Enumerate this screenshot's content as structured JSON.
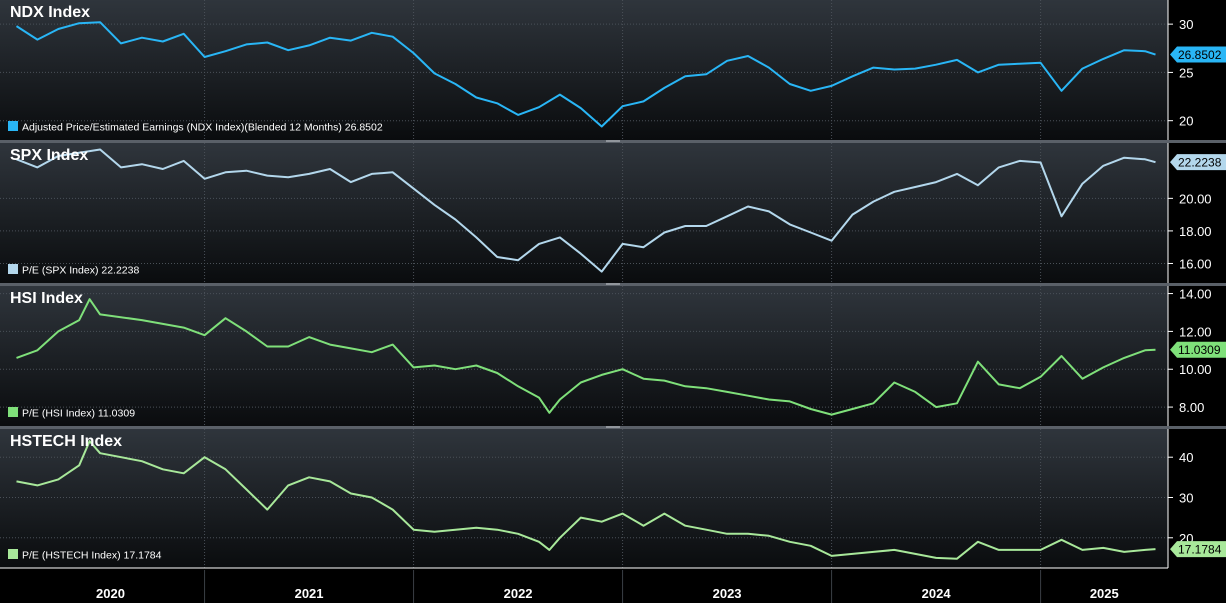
{
  "chart_data": [
    {
      "type": "line",
      "title": "NDX Index",
      "series": [
        {
          "name": "Adjusted Price/Estimated Earnings (NDX Index)(Blended 12 Months)",
          "color": "#29b6f6",
          "values": [
            [
              2020.0,
              29.8
            ],
            [
              2020.1,
              28.4
            ],
            [
              2020.2,
              29.5
            ],
            [
              2020.3,
              30.1
            ],
            [
              2020.4,
              30.2
            ],
            [
              2020.5,
              28.0
            ],
            [
              2020.6,
              28.6
            ],
            [
              2020.7,
              28.2
            ],
            [
              2020.8,
              29.0
            ],
            [
              2020.9,
              26.6
            ],
            [
              2021.0,
              27.2
            ],
            [
              2021.1,
              27.9
            ],
            [
              2021.2,
              28.1
            ],
            [
              2021.3,
              27.3
            ],
            [
              2021.4,
              27.8
            ],
            [
              2021.5,
              28.6
            ],
            [
              2021.6,
              28.3
            ],
            [
              2021.7,
              29.1
            ],
            [
              2021.8,
              28.7
            ],
            [
              2021.9,
              27.0
            ],
            [
              2022.0,
              24.9
            ],
            [
              2022.1,
              23.8
            ],
            [
              2022.2,
              22.4
            ],
            [
              2022.3,
              21.8
            ],
            [
              2022.4,
              20.6
            ],
            [
              2022.5,
              21.4
            ],
            [
              2022.6,
              22.7
            ],
            [
              2022.7,
              21.3
            ],
            [
              2022.8,
              19.4
            ],
            [
              2022.9,
              21.5
            ],
            [
              2023.0,
              22.0
            ],
            [
              2023.1,
              23.4
            ],
            [
              2023.2,
              24.6
            ],
            [
              2023.3,
              24.8
            ],
            [
              2023.4,
              26.2
            ],
            [
              2023.5,
              26.7
            ],
            [
              2023.6,
              25.5
            ],
            [
              2023.7,
              23.8
            ],
            [
              2023.8,
              23.1
            ],
            [
              2023.9,
              23.6
            ],
            [
              2024.0,
              24.6
            ],
            [
              2024.1,
              25.5
            ],
            [
              2024.2,
              25.3
            ],
            [
              2024.3,
              25.4
            ],
            [
              2024.4,
              25.8
            ],
            [
              2024.5,
              26.3
            ],
            [
              2024.6,
              25.0
            ],
            [
              2024.7,
              25.8
            ],
            [
              2024.8,
              25.9
            ],
            [
              2024.9,
              26.0
            ],
            [
              2025.0,
              23.1
            ],
            [
              2025.1,
              25.4
            ],
            [
              2025.2,
              26.4
            ],
            [
              2025.3,
              27.3
            ],
            [
              2025.4,
              27.2
            ],
            [
              2025.45,
              26.85
            ]
          ]
        }
      ],
      "ylim": [
        18,
        32.5
      ],
      "yticks": [
        "30",
        "25",
        "20"
      ],
      "last_value": "26.8502",
      "legend": "Adjusted Price/Estimated Earnings (NDX Index)(Blended 12 Months)  26.8502"
    },
    {
      "type": "line",
      "title": "SPX Index",
      "series": [
        {
          "name": "P/E (SPX Index)",
          "color": "#b3d7ec",
          "values": [
            [
              2020.0,
              22.4
            ],
            [
              2020.1,
              21.9
            ],
            [
              2020.2,
              22.6
            ],
            [
              2020.3,
              22.8
            ],
            [
              2020.4,
              23.0
            ],
            [
              2020.5,
              21.9
            ],
            [
              2020.6,
              22.1
            ],
            [
              2020.7,
              21.8
            ],
            [
              2020.8,
              22.3
            ],
            [
              2020.9,
              21.2
            ],
            [
              2021.0,
              21.6
            ],
            [
              2021.1,
              21.7
            ],
            [
              2021.2,
              21.4
            ],
            [
              2021.3,
              21.3
            ],
            [
              2021.4,
              21.5
            ],
            [
              2021.5,
              21.8
            ],
            [
              2021.6,
              21.0
            ],
            [
              2021.7,
              21.5
            ],
            [
              2021.8,
              21.6
            ],
            [
              2021.9,
              20.6
            ],
            [
              2022.0,
              19.6
            ],
            [
              2022.1,
              18.7
            ],
            [
              2022.2,
              17.6
            ],
            [
              2022.3,
              16.4
            ],
            [
              2022.4,
              16.2
            ],
            [
              2022.5,
              17.2
            ],
            [
              2022.6,
              17.6
            ],
            [
              2022.7,
              16.6
            ],
            [
              2022.8,
              15.5
            ],
            [
              2022.9,
              17.2
            ],
            [
              2023.0,
              17.0
            ],
            [
              2023.1,
              17.9
            ],
            [
              2023.2,
              18.3
            ],
            [
              2023.3,
              18.3
            ],
            [
              2023.4,
              18.9
            ],
            [
              2023.5,
              19.5
            ],
            [
              2023.6,
              19.2
            ],
            [
              2023.7,
              18.4
            ],
            [
              2023.8,
              17.9
            ],
            [
              2023.9,
              17.4
            ],
            [
              2024.0,
              19.0
            ],
            [
              2024.1,
              19.8
            ],
            [
              2024.2,
              20.4
            ],
            [
              2024.3,
              20.7
            ],
            [
              2024.4,
              21.0
            ],
            [
              2024.5,
              21.5
            ],
            [
              2024.6,
              20.8
            ],
            [
              2024.7,
              21.9
            ],
            [
              2024.8,
              22.3
            ],
            [
              2024.9,
              22.2
            ],
            [
              2025.0,
              18.9
            ],
            [
              2025.1,
              20.9
            ],
            [
              2025.2,
              22.0
            ],
            [
              2025.3,
              22.5
            ],
            [
              2025.4,
              22.4
            ],
            [
              2025.45,
              22.22
            ]
          ]
        }
      ],
      "ylim": [
        14.8,
        23.4
      ],
      "yticks": [
        "20.00",
        "18.00",
        "16.00"
      ],
      "last_value": "22.2238",
      "legend": "P/E (SPX Index)  22.2238"
    },
    {
      "type": "line",
      "title": "HSI Index",
      "series": [
        {
          "name": "P/E (HSI Index)",
          "color": "#7fe07a",
          "values": [
            [
              2020.0,
              10.6
            ],
            [
              2020.1,
              11.0
            ],
            [
              2020.2,
              12.0
            ],
            [
              2020.3,
              12.6
            ],
            [
              2020.35,
              13.7
            ],
            [
              2020.4,
              12.9
            ],
            [
              2020.6,
              12.6
            ],
            [
              2020.8,
              12.2
            ],
            [
              2020.9,
              11.8
            ],
            [
              2021.0,
              12.7
            ],
            [
              2021.1,
              12.0
            ],
            [
              2021.2,
              11.2
            ],
            [
              2021.3,
              11.2
            ],
            [
              2021.4,
              11.7
            ],
            [
              2021.5,
              11.3
            ],
            [
              2021.6,
              11.1
            ],
            [
              2021.7,
              10.9
            ],
            [
              2021.8,
              11.3
            ],
            [
              2021.9,
              10.1
            ],
            [
              2022.0,
              10.2
            ],
            [
              2022.1,
              10.0
            ],
            [
              2022.2,
              10.2
            ],
            [
              2022.3,
              9.8
            ],
            [
              2022.4,
              9.1
            ],
            [
              2022.5,
              8.5
            ],
            [
              2022.55,
              7.7
            ],
            [
              2022.6,
              8.4
            ],
            [
              2022.7,
              9.3
            ],
            [
              2022.8,
              9.7
            ],
            [
              2022.9,
              10.0
            ],
            [
              2023.0,
              9.5
            ],
            [
              2023.1,
              9.4
            ],
            [
              2023.2,
              9.1
            ],
            [
              2023.3,
              9.0
            ],
            [
              2023.4,
              8.8
            ],
            [
              2023.5,
              8.6
            ],
            [
              2023.6,
              8.4
            ],
            [
              2023.7,
              8.3
            ],
            [
              2023.8,
              7.9
            ],
            [
              2023.9,
              7.6
            ],
            [
              2024.0,
              7.9
            ],
            [
              2024.1,
              8.2
            ],
            [
              2024.2,
              9.3
            ],
            [
              2024.3,
              8.8
            ],
            [
              2024.4,
              8.0
            ],
            [
              2024.5,
              8.2
            ],
            [
              2024.6,
              10.4
            ],
            [
              2024.7,
              9.2
            ],
            [
              2024.8,
              9.0
            ],
            [
              2024.9,
              9.6
            ],
            [
              2025.0,
              10.7
            ],
            [
              2025.1,
              9.5
            ],
            [
              2025.2,
              10.1
            ],
            [
              2025.3,
              10.6
            ],
            [
              2025.4,
              11.0
            ],
            [
              2025.45,
              11.03
            ]
          ]
        }
      ],
      "ylim": [
        7,
        14.4
      ],
      "yticks": [
        "14.00",
        "12.00",
        "10.00",
        "8.00"
      ],
      "last_value": "11.0309",
      "legend": "P/E (HSI Index)  11.0309"
    },
    {
      "type": "line",
      "title": "HSTECH Index",
      "series": [
        {
          "name": "P/E (HSTECH Index)",
          "color": "#a8e89a",
          "values": [
            [
              2020.0,
              34.0
            ],
            [
              2020.1,
              33.0
            ],
            [
              2020.2,
              34.5
            ],
            [
              2020.3,
              38.0
            ],
            [
              2020.35,
              44.0
            ],
            [
              2020.4,
              41.0
            ],
            [
              2020.6,
              39.0
            ],
            [
              2020.7,
              37.0
            ],
            [
              2020.8,
              36.0
            ],
            [
              2020.9,
              40.0
            ],
            [
              2021.0,
              37.0
            ],
            [
              2021.1,
              32.0
            ],
            [
              2021.2,
              27.0
            ],
            [
              2021.3,
              33.0
            ],
            [
              2021.4,
              35.0
            ],
            [
              2021.5,
              34.0
            ],
            [
              2021.6,
              31.0
            ],
            [
              2021.7,
              30.0
            ],
            [
              2021.8,
              27.0
            ],
            [
              2021.9,
              22.0
            ],
            [
              2022.0,
              21.5
            ],
            [
              2022.1,
              22.0
            ],
            [
              2022.2,
              22.5
            ],
            [
              2022.3,
              22.0
            ],
            [
              2022.4,
              21.0
            ],
            [
              2022.5,
              19.0
            ],
            [
              2022.55,
              17.0
            ],
            [
              2022.6,
              20.0
            ],
            [
              2022.7,
              25.0
            ],
            [
              2022.8,
              24.0
            ],
            [
              2022.9,
              26.0
            ],
            [
              2023.0,
              23.0
            ],
            [
              2023.1,
              26.0
            ],
            [
              2023.2,
              23.0
            ],
            [
              2023.3,
              22.0
            ],
            [
              2023.4,
              21.0
            ],
            [
              2023.5,
              21.0
            ],
            [
              2023.6,
              20.5
            ],
            [
              2023.7,
              19.0
            ],
            [
              2023.8,
              18.0
            ],
            [
              2023.9,
              15.5
            ],
            [
              2024.0,
              16.0
            ],
            [
              2024.1,
              16.5
            ],
            [
              2024.2,
              17.0
            ],
            [
              2024.3,
              16.0
            ],
            [
              2024.4,
              15.0
            ],
            [
              2024.5,
              14.8
            ],
            [
              2024.6,
              19.0
            ],
            [
              2024.7,
              17.0
            ],
            [
              2024.8,
              17.0
            ],
            [
              2024.9,
              17.0
            ],
            [
              2025.0,
              19.5
            ],
            [
              2025.1,
              17.0
            ],
            [
              2025.2,
              17.5
            ],
            [
              2025.3,
              16.5
            ],
            [
              2025.4,
              17.0
            ],
            [
              2025.45,
              17.18
            ]
          ]
        }
      ],
      "ylim": [
        12.5,
        47
      ],
      "yticks": [
        "40",
        "30",
        "20"
      ],
      "last_value": "17.1784",
      "legend": "P/E (HSTECH Index)  17.1784"
    }
  ],
  "x_axis": {
    "range": [
      2019.95,
      2025.5
    ],
    "labels": [
      {
        "text": "2020",
        "at": 2020.0
      },
      {
        "text": "2021",
        "at": 2020.9
      },
      {
        "text": "2022",
        "at": 2021.9
      },
      {
        "text": "2023",
        "at": 2022.9
      },
      {
        "text": "2024",
        "at": 2023.9
      },
      {
        "text": "2025",
        "at": 2024.9
      }
    ]
  }
}
